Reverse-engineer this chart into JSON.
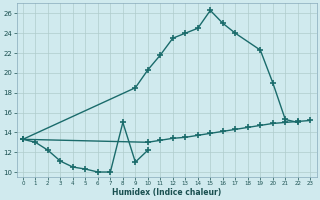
{
  "xlabel": "Humidex (Indice chaleur)",
  "bg_color": "#d0eaee",
  "grid_color": "#b0cccc",
  "line_color": "#1a6b6b",
  "xlim": [
    -0.5,
    23.5
  ],
  "ylim": [
    9.5,
    27
  ],
  "xticks": [
    0,
    1,
    2,
    3,
    4,
    5,
    6,
    7,
    8,
    9,
    10,
    11,
    12,
    13,
    14,
    15,
    16,
    17,
    18,
    19,
    20,
    21,
    22,
    23
  ],
  "yticks": [
    10,
    12,
    14,
    16,
    18,
    20,
    22,
    24,
    26
  ],
  "line1_x": [
    0,
    1,
    2,
    3,
    4,
    5,
    6,
    7,
    8,
    9,
    10
  ],
  "line1_y": [
    13.3,
    13.0,
    12.2,
    11.1,
    10.5,
    10.3,
    10.0,
    10.0,
    15.0,
    11.0,
    12.2
  ],
  "line2_x": [
    0,
    9,
    10,
    11,
    12,
    13,
    14,
    15,
    16,
    17,
    19,
    20,
    21,
    22
  ],
  "line2_y": [
    13.3,
    18.5,
    20.3,
    21.8,
    23.5,
    24.0,
    24.5,
    26.3,
    25.0,
    24.0,
    22.3,
    19.0,
    15.3,
    15.0
  ],
  "line3_x": [
    0,
    10,
    11,
    12,
    13,
    14,
    15,
    16,
    17,
    18,
    19,
    20,
    21,
    22,
    23
  ],
  "line3_y": [
    13.3,
    13.0,
    13.2,
    13.4,
    13.5,
    13.7,
    13.9,
    14.1,
    14.3,
    14.5,
    14.7,
    14.9,
    15.0,
    15.1,
    15.2
  ],
  "marker_size": 4,
  "line_width": 1.0
}
